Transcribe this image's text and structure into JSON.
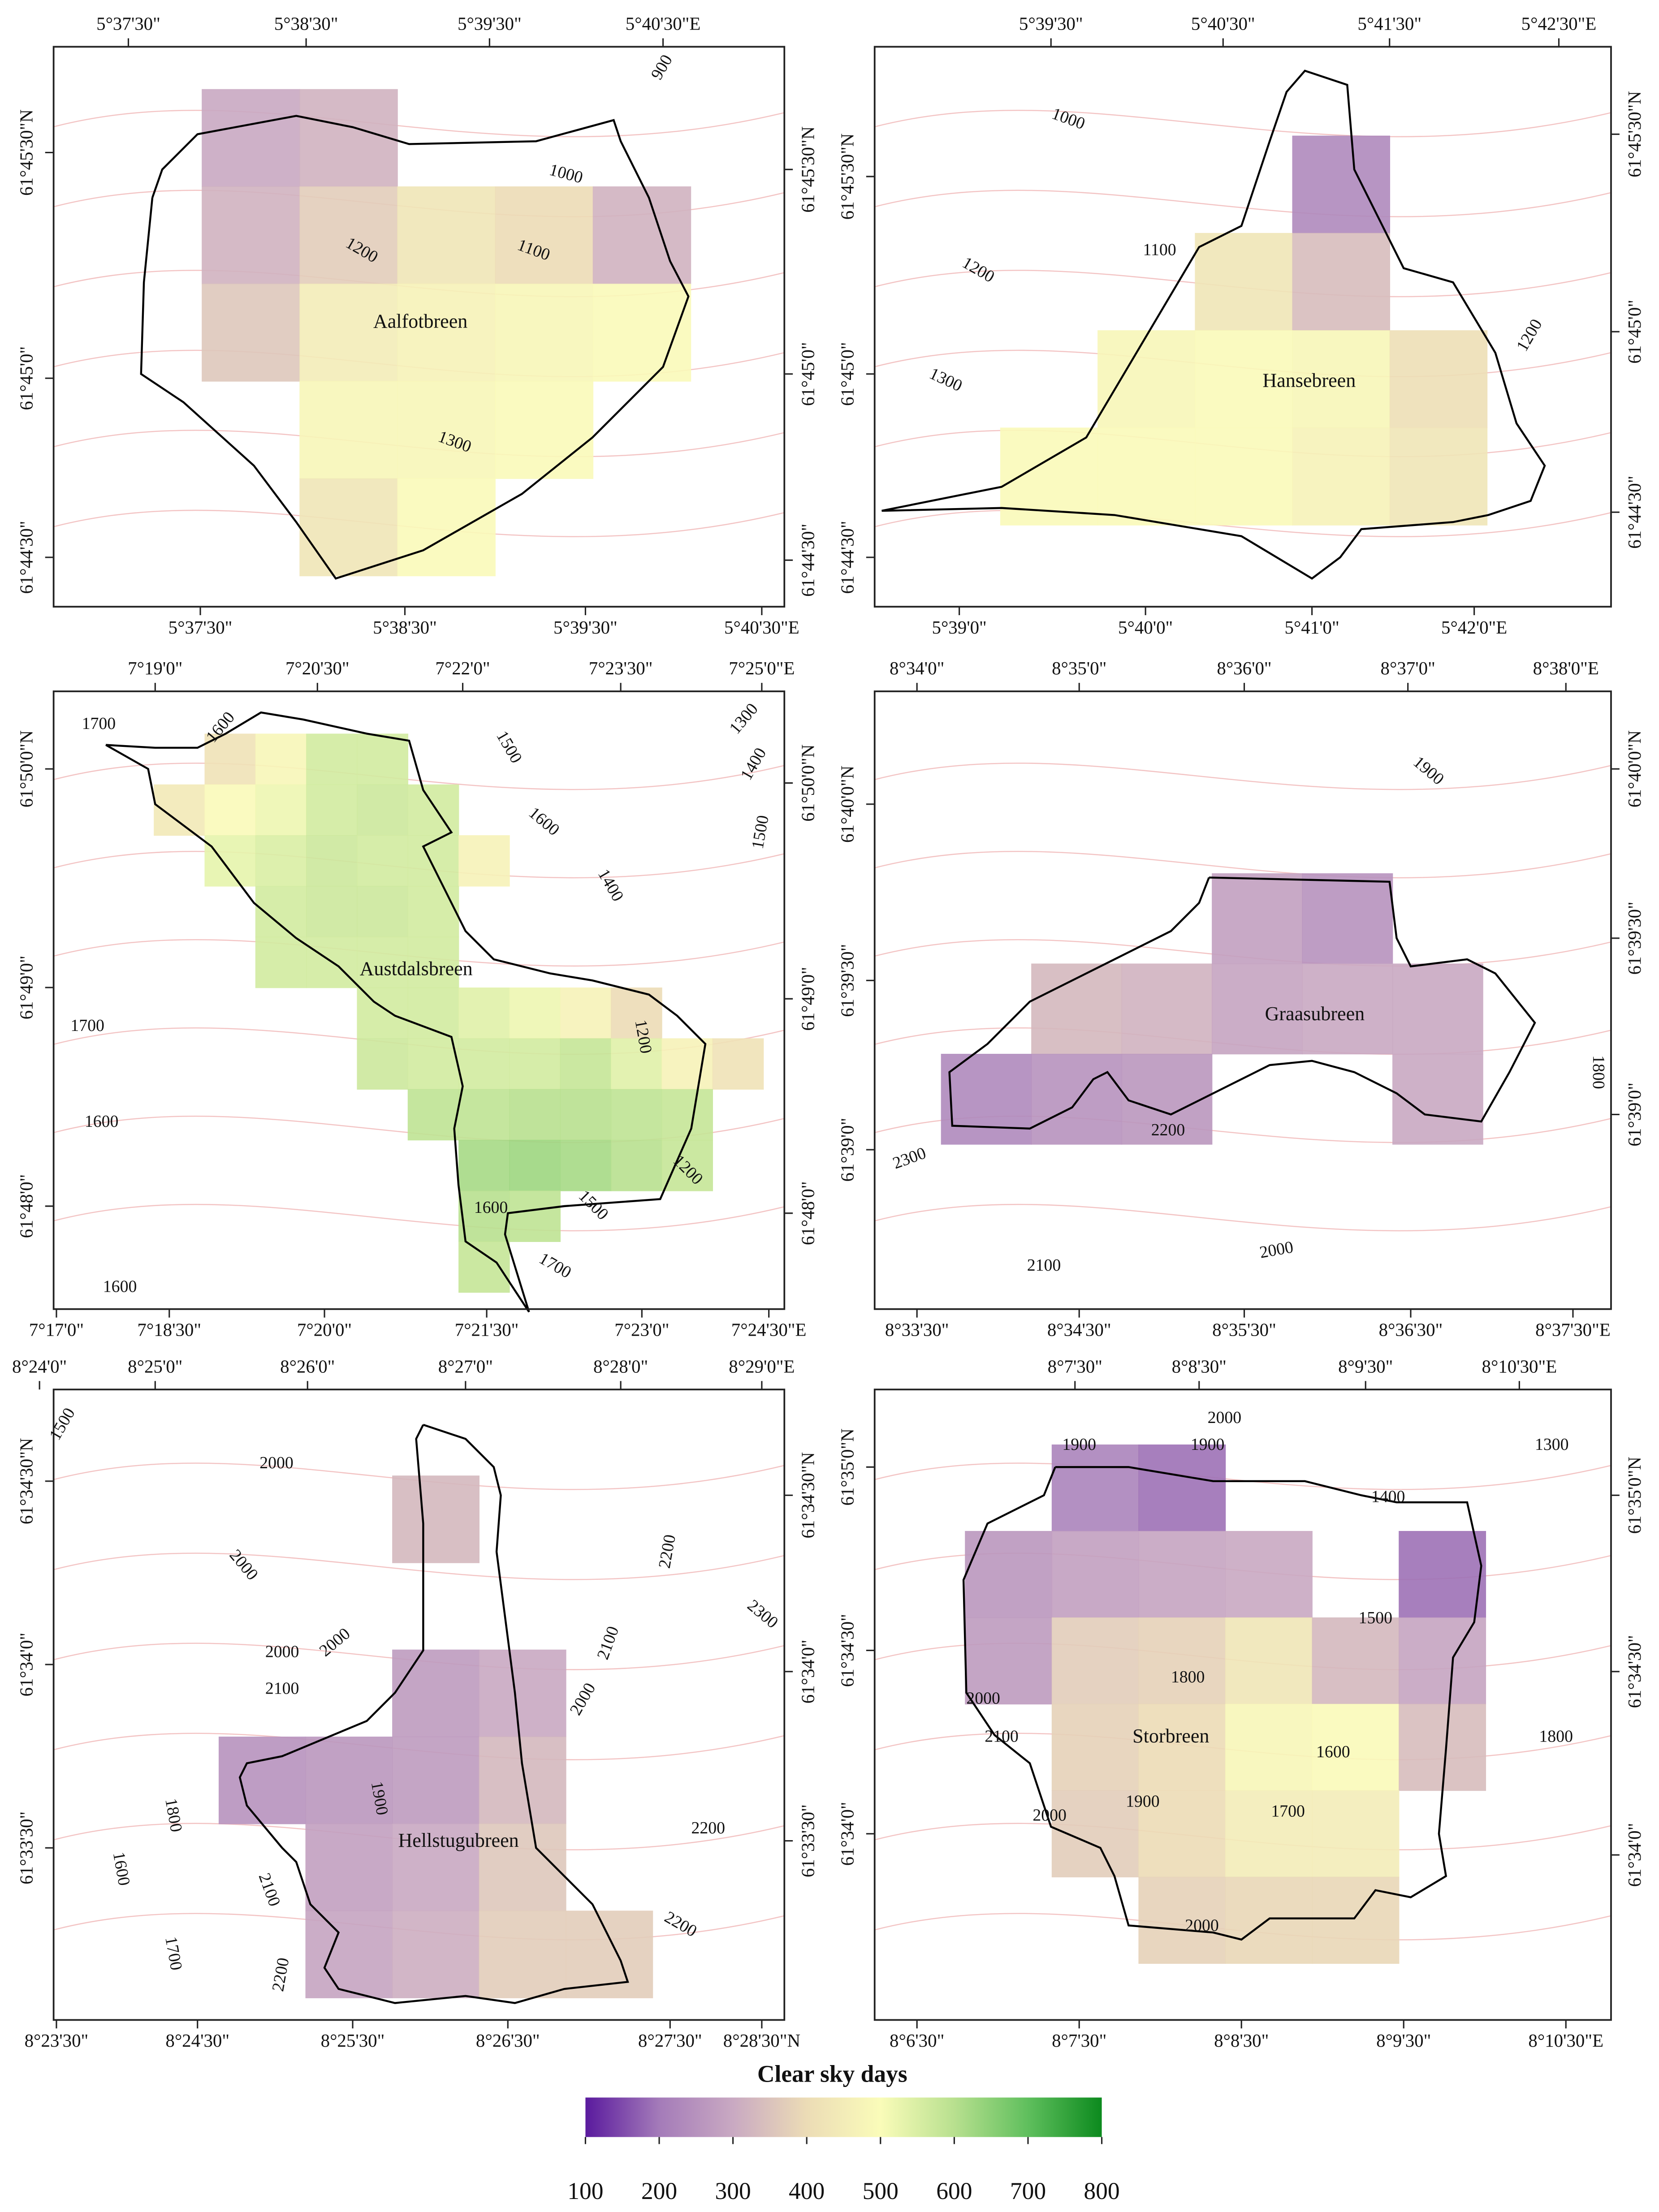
{
  "panels": [
    {
      "name": "Aalfotbreen",
      "top_labels": [
        "5°37'30\"",
        "5°38'30\"",
        "5°39'30\"",
        "5°40'30\"E"
      ],
      "bottom_labels": [
        "5°37'30\"",
        "5°38'30\"",
        "5°39'30\"",
        "5°40'30\"E"
      ],
      "left_labels": [
        "61°45'30\"N",
        "61°45'0\"",
        "61°44'30\""
      ],
      "right_labels": [
        "61°45'30\"N",
        "61°45'0\"",
        "61°44'30\""
      ],
      "contour_labels": [
        "900",
        "1000",
        "1200",
        "1100",
        "1300"
      ],
      "grid": [
        [
          300,
          320,
          null,
          null,
          null
        ],
        [
          320,
          370,
          430,
          400,
          320
        ],
        [
          360,
          450,
          470,
          480,
          490
        ],
        [
          null,
          480,
          480,
          490,
          null
        ],
        [
          null,
          430,
          490,
          null,
          null
        ]
      ]
    },
    {
      "name": "Hansebreen",
      "top_labels": [
        "5°39'30\"",
        "5°40'30\"",
        "5°41'30\"",
        "5°42'30\"E"
      ],
      "bottom_labels": [
        "5°39'0\"",
        "5°40'0\"",
        "5°41'0\"",
        "5°42'0\"E"
      ],
      "left_labels": [
        "61°45'30\"N",
        "61°45'0\"",
        "61°44'30\""
      ],
      "right_labels": [
        "61°45'30\"N",
        "61°45'0\"",
        "61°44'30\""
      ],
      "contour_labels": [
        "1000",
        "1100",
        "1200",
        "1300",
        "1200"
      ],
      "grid": [
        [
          null,
          null,
          null,
          230,
          null
        ],
        [
          null,
          null,
          430,
          340,
          null
        ],
        [
          null,
          480,
          490,
          480,
          410
        ],
        [
          490,
          490,
          490,
          470,
          430
        ]
      ]
    },
    {
      "name": "Austdalsbreen",
      "top_labels": [
        "7°19'0\"",
        "7°20'30\"",
        "7°22'0\"",
        "7°23'30\"",
        "7°25'0\"E"
      ],
      "bottom_labels": [
        "7°17'0\"",
        "7°18'30\"",
        "7°20'0\"",
        "7°21'30\"",
        "7°23'0\"",
        "7°24'30\"E"
      ],
      "left_labels": [
        "61°50'0\"N",
        "61°49'0\"",
        "61°48'0\""
      ],
      "right_labels": [
        "61°50'0\"N",
        "61°49'0\"",
        "61°48'0\""
      ],
      "contour_labels": [
        "1700",
        "1600",
        "1500",
        "1300",
        "1400",
        "1600",
        "1500",
        "1400",
        "1700",
        "1200",
        "1600",
        "1200",
        "1500",
        "1600",
        "1700",
        "1600"
      ],
      "grid": [
        [
          null,
          420,
          480,
          560,
          560,
          null,
          null,
          null,
          null,
          null,
          null,
          null
        ],
        [
          440,
          490,
          520,
          560,
          570,
          560,
          null,
          null,
          null,
          null,
          null,
          null
        ],
        [
          null,
          530,
          550,
          570,
          560,
          560,
          470,
          null,
          null,
          null,
          null,
          null
        ],
        [
          null,
          null,
          560,
          570,
          570,
          560,
          null,
          null,
          null,
          null,
          null,
          null
        ],
        [
          null,
          null,
          560,
          560,
          560,
          560,
          null,
          null,
          null,
          null,
          null,
          null
        ],
        [
          null,
          null,
          null,
          null,
          560,
          560,
          540,
          520,
          470,
          400,
          null,
          null
        ],
        [
          null,
          null,
          null,
          null,
          570,
          560,
          560,
          560,
          580,
          540,
          470,
          420
        ],
        [
          null,
          null,
          null,
          null,
          null,
          590,
          590,
          600,
          600,
          590,
          580,
          null
        ],
        [
          null,
          null,
          null,
          null,
          null,
          null,
          620,
          630,
          620,
          600,
          580,
          null
        ],
        [
          null,
          null,
          null,
          null,
          null,
          null,
          600,
          590,
          null,
          null,
          null,
          null
        ],
        [
          null,
          null,
          null,
          null,
          null,
          null,
          580,
          null,
          null,
          null,
          null,
          null
        ]
      ]
    },
    {
      "name": "Graasubreen",
      "top_labels": [
        "8°34'0\"",
        "8°35'0\"",
        "8°36'0\"",
        "8°37'0\"",
        "8°38'0\"E"
      ],
      "bottom_labels": [
        "8°33'30\"",
        "8°34'30\"",
        "8°35'30\"",
        "8°36'30\"",
        "8°37'30\"E"
      ],
      "left_labels": [
        "61°40'0\"N",
        "61°39'30\"",
        "61°39'0\""
      ],
      "right_labels": [
        "61°40'0\"N",
        "61°39'30\"",
        "61°39'0\""
      ],
      "contour_labels": [
        "1900",
        "1800",
        "2200",
        "2300",
        "2100",
        "2000"
      ],
      "grid": [
        [
          null,
          null,
          null,
          280,
          250,
          null
        ],
        [
          null,
          330,
          320,
          290,
          300,
          300
        ],
        [
          230,
          250,
          260,
          null,
          null,
          300
        ]
      ]
    },
    {
      "name": "Hellstugubreen",
      "top_labels": [
        "8°24'0\"",
        "8°25'0\"",
        "8°26'0\"",
        "8°27'0\"",
        "8°28'0\"",
        "8°29'0\"E"
      ],
      "bottom_labels": [
        "8°23'30\"",
        "8°24'30\"",
        "8°25'30\"",
        "8°26'30\"",
        "8°27'30\"",
        "8°28'30\"N"
      ],
      "left_labels": [
        "61°34'30\"N",
        "61°34'0\"",
        "61°33'30\""
      ],
      "right_labels": [
        "61°34'30\"N",
        "61°34'0\"",
        "61°33'30\""
      ],
      "contour_labels": [
        "1500",
        "2000",
        "2000",
        "2000",
        "2000",
        "2100",
        "2000",
        "2100",
        "2200",
        "2300",
        "1900",
        "1800",
        "1600",
        "2200",
        "2100",
        "1700",
        "2200",
        "2200"
      ],
      "grid": [
        [
          null,
          null,
          330,
          null,
          null
        ],
        [
          null,
          null,
          null,
          null,
          null
        ],
        [
          null,
          null,
          270,
          300,
          null
        ],
        [
          250,
          260,
          270,
          330,
          null
        ],
        [
          null,
          280,
          300,
          360,
          null
        ],
        [
          null,
          290,
          310,
          370,
          370
        ]
      ]
    },
    {
      "name": "Storbreen",
      "top_labels": [
        "8°7'30\"",
        "8°8'30\"",
        "8°9'30\"",
        "8°10'30\"E"
      ],
      "bottom_labels": [
        "8°6'30\"",
        "8°7'30\"",
        "8°8'30\"",
        "8°9'30\"",
        "8°10'30\"E"
      ],
      "left_labels": [
        "61°35'0\"N",
        "61°34'30\"",
        "61°34'0\""
      ],
      "right_labels": [
        "61°35'0\"N",
        "61°34'30\"",
        "61°34'0\""
      ],
      "contour_labels": [
        "2000",
        "1900",
        "1900",
        "1300",
        "1400",
        "1500",
        "1800",
        "2000",
        "2100",
        "1600",
        "1800",
        "1900",
        "1700",
        "2000",
        "2000"
      ],
      "grid": [
        [
          null,
          220,
          190,
          null,
          null,
          null
        ],
        [
          260,
          280,
          290,
          300,
          null,
          190
        ],
        [
          270,
          370,
          380,
          430,
          330,
          290
        ],
        [
          null,
          380,
          400,
          480,
          490,
          340
        ],
        [
          null,
          370,
          400,
          450,
          450,
          null
        ],
        [
          null,
          null,
          380,
          390,
          390,
          null
        ]
      ]
    }
  ],
  "legend": {
    "title": "Clear sky days",
    "range": [
      100,
      800
    ],
    "ticks": [
      100,
      200,
      300,
      400,
      500,
      600,
      700,
      800
    ],
    "colorscale": [
      {
        "value": 100,
        "color": "#5a1a9e"
      },
      {
        "value": 200,
        "color": "#a47bb9"
      },
      {
        "value": 300,
        "color": "#c9a9c2"
      },
      {
        "value": 400,
        "color": "#ecdcb6"
      },
      {
        "value": 500,
        "color": "#fafcb9"
      },
      {
        "value": 600,
        "color": "#b8e08f"
      },
      {
        "value": 700,
        "color": "#5fbf5d"
      },
      {
        "value": 800,
        "color": "#0c8a1e"
      }
    ]
  }
}
